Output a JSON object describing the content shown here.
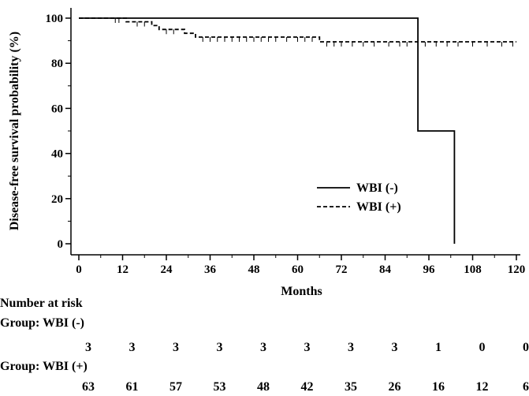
{
  "chart_data": {
    "type": "line",
    "ylabel": "Disease-free survival probability (%)",
    "xlabel": "Months",
    "xlim": [
      0,
      120
    ],
    "ylim": [
      0,
      100
    ],
    "x_ticks": [
      0,
      12,
      24,
      36,
      48,
      60,
      72,
      84,
      96,
      108,
      120
    ],
    "y_ticks": [
      0,
      20,
      40,
      60,
      80,
      100
    ],
    "legend_position": "center-right",
    "grid": false,
    "series": [
      {
        "name": "WBI (-)",
        "line_style": "solid",
        "color": "#000000",
        "x": [
          0,
          93,
          93,
          103,
          103
        ],
        "y": [
          100,
          100,
          50,
          50,
          0
        ],
        "censor_x": []
      },
      {
        "name": "WBI (+)",
        "line_style": "dashed",
        "color": "#000000",
        "x": [
          0,
          13,
          13,
          20,
          20,
          22,
          22,
          29,
          29,
          32,
          32,
          66,
          66,
          120
        ],
        "y": [
          100,
          100,
          98.4,
          98.4,
          96.7,
          96.7,
          95.0,
          95.0,
          93.3,
          93.3,
          91.6,
          91.6,
          89.5,
          89.5
        ],
        "censor_x": [
          10,
          11,
          16,
          18,
          24,
          26,
          34,
          36,
          38,
          40,
          42,
          44,
          46,
          48,
          50,
          52,
          54,
          57,
          60,
          62,
          64,
          68,
          70,
          72,
          75,
          78,
          81,
          85,
          88,
          90,
          95,
          98,
          101,
          104,
          108,
          112,
          116,
          119
        ]
      }
    ]
  },
  "risk_table": {
    "title": "Number at risk",
    "times": [
      0,
      12,
      24,
      36,
      48,
      60,
      72,
      84,
      96,
      108,
      120
    ],
    "groups": [
      {
        "label": "Group: WBI (-)",
        "counts": [
          "3",
          "3",
          "3",
          "3",
          "3",
          "3",
          "3",
          "3",
          "1",
          "0",
          "0"
        ]
      },
      {
        "label": "Group: WBI (+)",
        "counts": [
          "63",
          "61",
          "57",
          "53",
          "48",
          "42",
          "35",
          "26",
          "16",
          "12",
          "6"
        ]
      }
    ]
  }
}
